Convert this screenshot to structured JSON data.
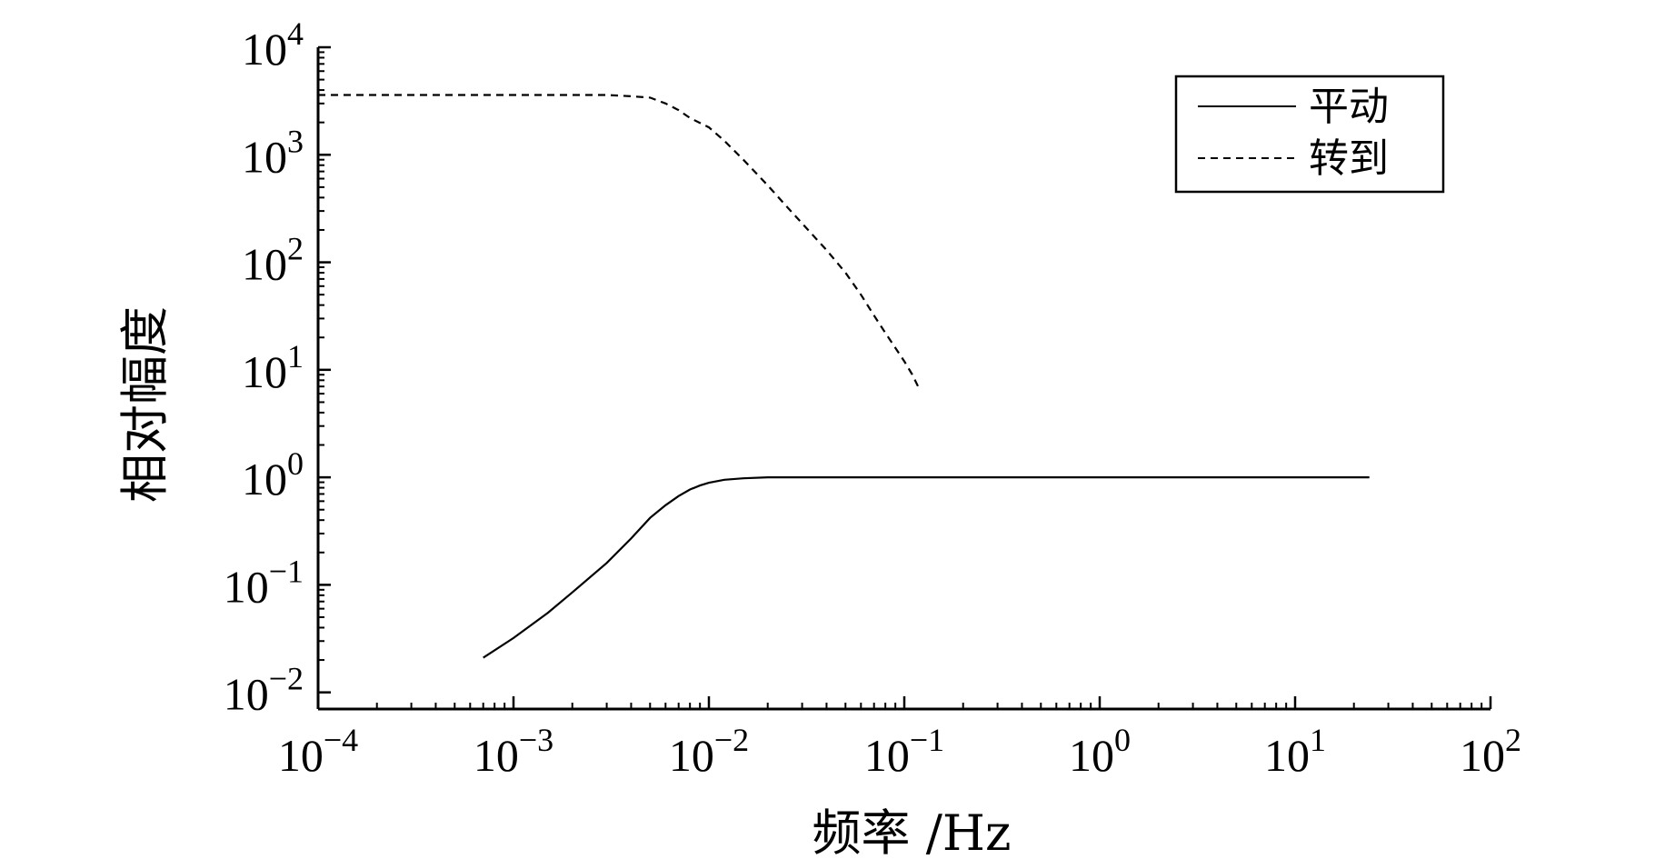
{
  "chart_data": {
    "type": "line",
    "xlabel": "频率 /Hz",
    "ylabel": "相对幅度",
    "x_scale": "log",
    "y_scale": "log",
    "xlim": [
      0.0001,
      100
    ],
    "ylim": [
      0.007,
      10000
    ],
    "x_ticks": [
      {
        "base": "10",
        "exp": "−4",
        "value": 0.0001
      },
      {
        "base": "10",
        "exp": "−3",
        "value": 0.001
      },
      {
        "base": "10",
        "exp": "−2",
        "value": 0.01
      },
      {
        "base": "10",
        "exp": "−1",
        "value": 0.1
      },
      {
        "base": "10",
        "exp": "0",
        "value": 1
      },
      {
        "base": "10",
        "exp": "1",
        "value": 10
      },
      {
        "base": "10",
        "exp": "2",
        "value": 100
      }
    ],
    "y_ticks": [
      {
        "base": "10",
        "exp": "4",
        "value": 10000
      },
      {
        "base": "10",
        "exp": "3",
        "value": 1000
      },
      {
        "base": "10",
        "exp": "2",
        "value": 100
      },
      {
        "base": "10",
        "exp": "1",
        "value": 10
      },
      {
        "base": "10",
        "exp": "0",
        "value": 1
      },
      {
        "base": "10",
        "exp": "−1",
        "value": 0.1
      },
      {
        "base": "10",
        "exp": "−2",
        "value": 0.01
      }
    ],
    "grid": false,
    "legend_position": "top-right",
    "series": [
      {
        "name": "平动",
        "style": "solid",
        "color": "#000000",
        "points": [
          [
            0.0007,
            0.021
          ],
          [
            0.001,
            0.032
          ],
          [
            0.0015,
            0.055
          ],
          [
            0.002,
            0.085
          ],
          [
            0.003,
            0.16
          ],
          [
            0.004,
            0.27
          ],
          [
            0.005,
            0.42
          ],
          [
            0.006,
            0.55
          ],
          [
            0.007,
            0.67
          ],
          [
            0.008,
            0.77
          ],
          [
            0.009,
            0.84
          ],
          [
            0.01,
            0.89
          ],
          [
            0.012,
            0.95
          ],
          [
            0.015,
            0.98
          ],
          [
            0.02,
            1.0
          ],
          [
            0.05,
            1.0
          ],
          [
            0.1,
            1.0
          ],
          [
            1,
            1.0
          ],
          [
            10,
            1.0
          ],
          [
            24,
            1.0
          ]
        ]
      },
      {
        "name": "转到",
        "style": "dashed",
        "color": "#000000",
        "points": [
          [
            0.0001,
            3600
          ],
          [
            0.001,
            3600
          ],
          [
            0.002,
            3600
          ],
          [
            0.003,
            3600
          ],
          [
            0.004,
            3500
          ],
          [
            0.005,
            3400
          ],
          [
            0.006,
            3000
          ],
          [
            0.007,
            2600
          ],
          [
            0.008,
            2200
          ],
          [
            0.01,
            1800
          ],
          [
            0.012,
            1350
          ],
          [
            0.015,
            900
          ],
          [
            0.02,
            520
          ],
          [
            0.025,
            330
          ],
          [
            0.03,
            230
          ],
          [
            0.04,
            130
          ],
          [
            0.05,
            80
          ],
          [
            0.06,
            50
          ],
          [
            0.07,
            32
          ],
          [
            0.08,
            22
          ],
          [
            0.09,
            16
          ],
          [
            0.1,
            12
          ],
          [
            0.11,
            9
          ],
          [
            0.12,
            6.5
          ]
        ]
      }
    ]
  }
}
